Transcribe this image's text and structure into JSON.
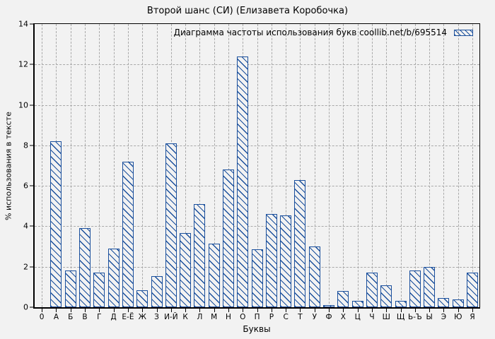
{
  "colors": {
    "bar": "#1a4f9c",
    "background": "#f2f2f2",
    "grid": "#a9a9a9",
    "axis": "#000000",
    "text": "#000000"
  },
  "chart_data": {
    "type": "bar",
    "title": "Второй шанс (СИ) (Елизавета Коробочка)",
    "legend_label": "Диаграмма частоты использования букв coollib.net/b/695514",
    "legend_position": "top-right",
    "xlabel": "Буквы",
    "ylabel": "% использования в тексте",
    "ylim": [
      0,
      14
    ],
    "yticks": [
      0,
      2,
      4,
      6,
      8,
      10,
      12,
      14
    ],
    "grid": true,
    "categories": [
      "0",
      "А",
      "Б",
      "В",
      "Г",
      "Д",
      "Е-Ё",
      "Ж",
      "З",
      "И-Й",
      "К",
      "Л",
      "М",
      "Н",
      "О",
      "П",
      "Р",
      "С",
      "Т",
      "У",
      "Ф",
      "Х",
      "Ц",
      "Ч",
      "Ш",
      "Щ",
      "Ь-Ъ",
      "Ы",
      "Э",
      "Ю",
      "Я"
    ],
    "values": [
      null,
      8.2,
      1.8,
      3.9,
      1.7,
      2.9,
      7.2,
      0.85,
      1.55,
      8.1,
      3.65,
      5.1,
      3.15,
      6.8,
      12.4,
      2.85,
      4.6,
      4.55,
      6.3,
      3.0,
      0.07,
      0.8,
      0.3,
      1.7,
      1.1,
      0.3,
      1.8,
      2.0,
      0.45,
      0.4,
      1.7
    ]
  }
}
